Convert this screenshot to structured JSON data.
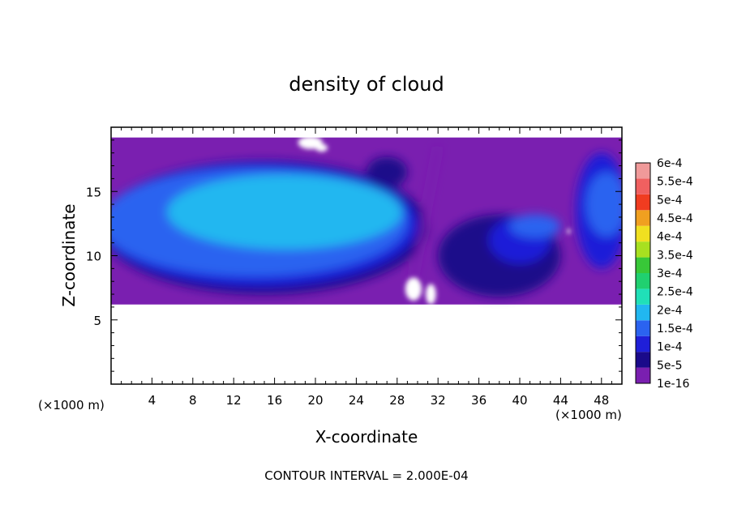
{
  "chart_data": {
    "type": "heatmap",
    "title": "density of cloud",
    "xlabel": "X-coordinate",
    "ylabel": "Z-coordinate",
    "x_unit_left": "(×1000 m)",
    "x_unit_right": "(×1000 m)",
    "xlim": [
      0,
      50
    ],
    "ylim": [
      0,
      20
    ],
    "x_ticks": [
      "4",
      "8",
      "12",
      "16",
      "20",
      "24",
      "28",
      "32",
      "36",
      "40",
      "44",
      "48"
    ],
    "y_ticks": [
      "5",
      "10",
      "15"
    ],
    "footer": "CONTOUR INTERVAL = 2.000E-04",
    "colorbar": {
      "labels": [
        "1e-16",
        "5e-5",
        "1e-4",
        "1.5e-4",
        "2e-4",
        "2.5e-4",
        "3e-4",
        "3.5e-4",
        "4e-4",
        "4.5e-4",
        "5e-4",
        "5.5e-4",
        "6e-4"
      ],
      "colors": [
        "#7a1fb0",
        "#1a0a8a",
        "#1f1fd8",
        "#2b63f0",
        "#21b7f0",
        "#20e0b8",
        "#20d070",
        "#38c838",
        "#a8e020",
        "#f0e020",
        "#f0a020",
        "#f03c20",
        "#f06060",
        "#f09a9a"
      ]
    },
    "regions": {
      "cloud_base_z": 6.2,
      "cloud_top_z": 19.2,
      "left_core_value": "1.5e-4",
      "right_turbulent_value": "5e-5",
      "edge_value": "1e-16"
    }
  }
}
